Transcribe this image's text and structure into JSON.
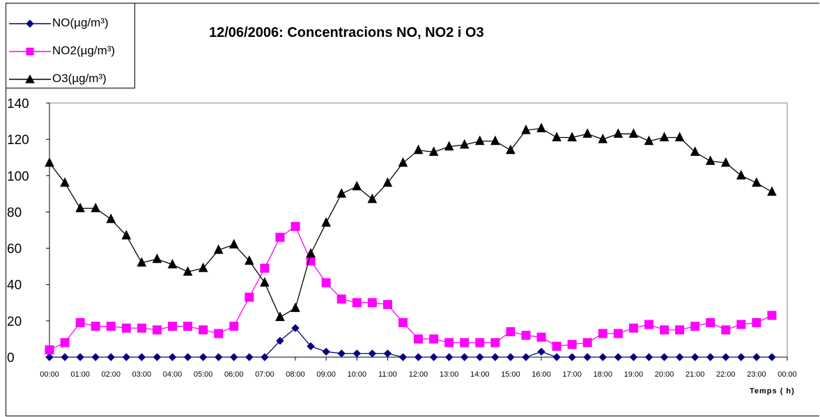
{
  "chart_data": {
    "type": "line",
    "title": "12/06/2006: Concentracions NO, NO2 i O3",
    "xlabel": "Temps ( h)",
    "ylabel": "",
    "ylim": [
      0,
      140
    ],
    "yticks": [
      "0",
      "20",
      "40",
      "60",
      "80",
      "100",
      "120",
      "140"
    ],
    "xticks": [
      "00:00",
      "01:00",
      "02:00",
      "03:00",
      "04:00",
      "05:00",
      "06:00",
      "07:00",
      "08:00",
      "09:00",
      "10:00",
      "11:00",
      "12:00",
      "13:00",
      "14:00",
      "15:00",
      "16:00",
      "17:00",
      "18:00",
      "19:00",
      "20:00",
      "21:00",
      "22:00",
      "23:00",
      "00:00"
    ],
    "x": [
      "00:00",
      "00:30",
      "01:00",
      "01:30",
      "02:00",
      "02:30",
      "03:00",
      "03:30",
      "04:00",
      "04:30",
      "05:00",
      "05:30",
      "06:00",
      "06:30",
      "07:00",
      "07:30",
      "08:00",
      "08:30",
      "09:00",
      "09:30",
      "10:00",
      "10:30",
      "11:00",
      "11:30",
      "12:00",
      "12:30",
      "13:00",
      "13:30",
      "14:00",
      "14:30",
      "15:00",
      "15:30",
      "16:00",
      "16:30",
      "17:00",
      "17:30",
      "18:00",
      "18:30",
      "19:00",
      "19:30",
      "20:00",
      "20:30",
      "21:00",
      "21:30",
      "22:00",
      "22:30",
      "23:00",
      "23:30"
    ],
    "series": [
      {
        "name": "NO(µg/m³)",
        "color": "#000080",
        "marker": "diamond",
        "values": [
          0,
          0,
          0,
          0,
          0,
          0,
          0,
          0,
          0,
          0,
          0,
          0,
          0,
          0,
          0,
          9,
          16,
          6,
          3,
          2,
          2,
          2,
          2,
          0,
          0,
          0,
          0,
          0,
          0,
          0,
          0,
          0,
          3,
          0,
          0,
          0,
          0,
          0,
          0,
          0,
          0,
          0,
          0,
          0,
          0,
          0,
          0,
          0
        ]
      },
      {
        "name": "NO2(µg/m³)",
        "color": "#ff00ff",
        "marker": "square",
        "values": [
          4,
          8,
          19,
          17,
          17,
          16,
          16,
          15,
          17,
          17,
          15,
          13,
          17,
          33,
          49,
          66,
          72,
          53,
          41,
          32,
          30,
          30,
          29,
          19,
          10,
          10,
          8,
          8,
          8,
          8,
          14,
          12,
          11,
          6,
          7,
          8,
          13,
          13,
          16,
          18,
          15,
          15,
          17,
          19,
          15,
          18,
          19,
          23
        ]
      },
      {
        "name": "O3(µg/m³)",
        "color": "#000000",
        "marker": "triangle",
        "values": [
          107,
          96,
          82,
          82,
          76,
          67,
          52,
          54,
          51,
          47,
          49,
          59,
          62,
          53,
          41,
          22,
          27,
          57,
          74,
          90,
          94,
          87,
          96,
          107,
          114,
          113,
          116,
          117,
          119,
          119,
          114,
          125,
          126,
          121,
          121,
          123,
          120,
          123,
          123,
          119,
          121,
          121,
          113,
          108,
          107,
          100,
          96,
          91
        ]
      }
    ],
    "grid": false,
    "legend_position": "top-left"
  }
}
